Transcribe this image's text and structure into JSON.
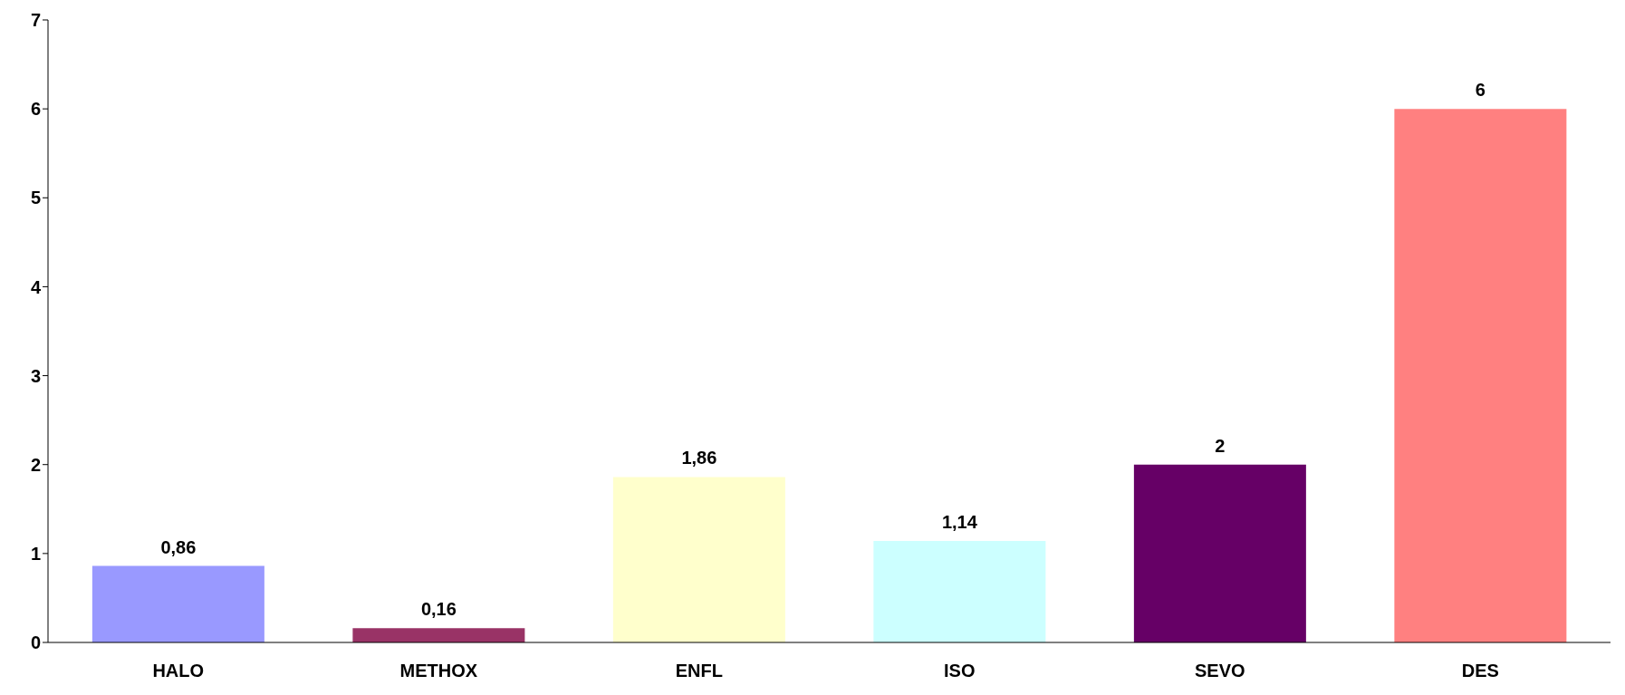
{
  "chart_data": {
    "type": "bar",
    "categories": [
      "HALO",
      "METHOX",
      "ENFL",
      "ISO",
      "SEVO",
      "DES"
    ],
    "values": [
      0.86,
      0.16,
      1.86,
      1.14,
      2,
      6
    ],
    "colors": [
      "#9999ff",
      "#993366",
      "#ffffcc",
      "#ccffff",
      "#660066",
      "#ff8080"
    ],
    "value_labels": [
      "0,86",
      "0,16",
      "1,86",
      "1,14",
      "2",
      "6"
    ],
    "ylim": [
      0,
      7
    ],
    "yticks": [
      0,
      1,
      2,
      3,
      4,
      5,
      6,
      7
    ],
    "grid": false
  }
}
